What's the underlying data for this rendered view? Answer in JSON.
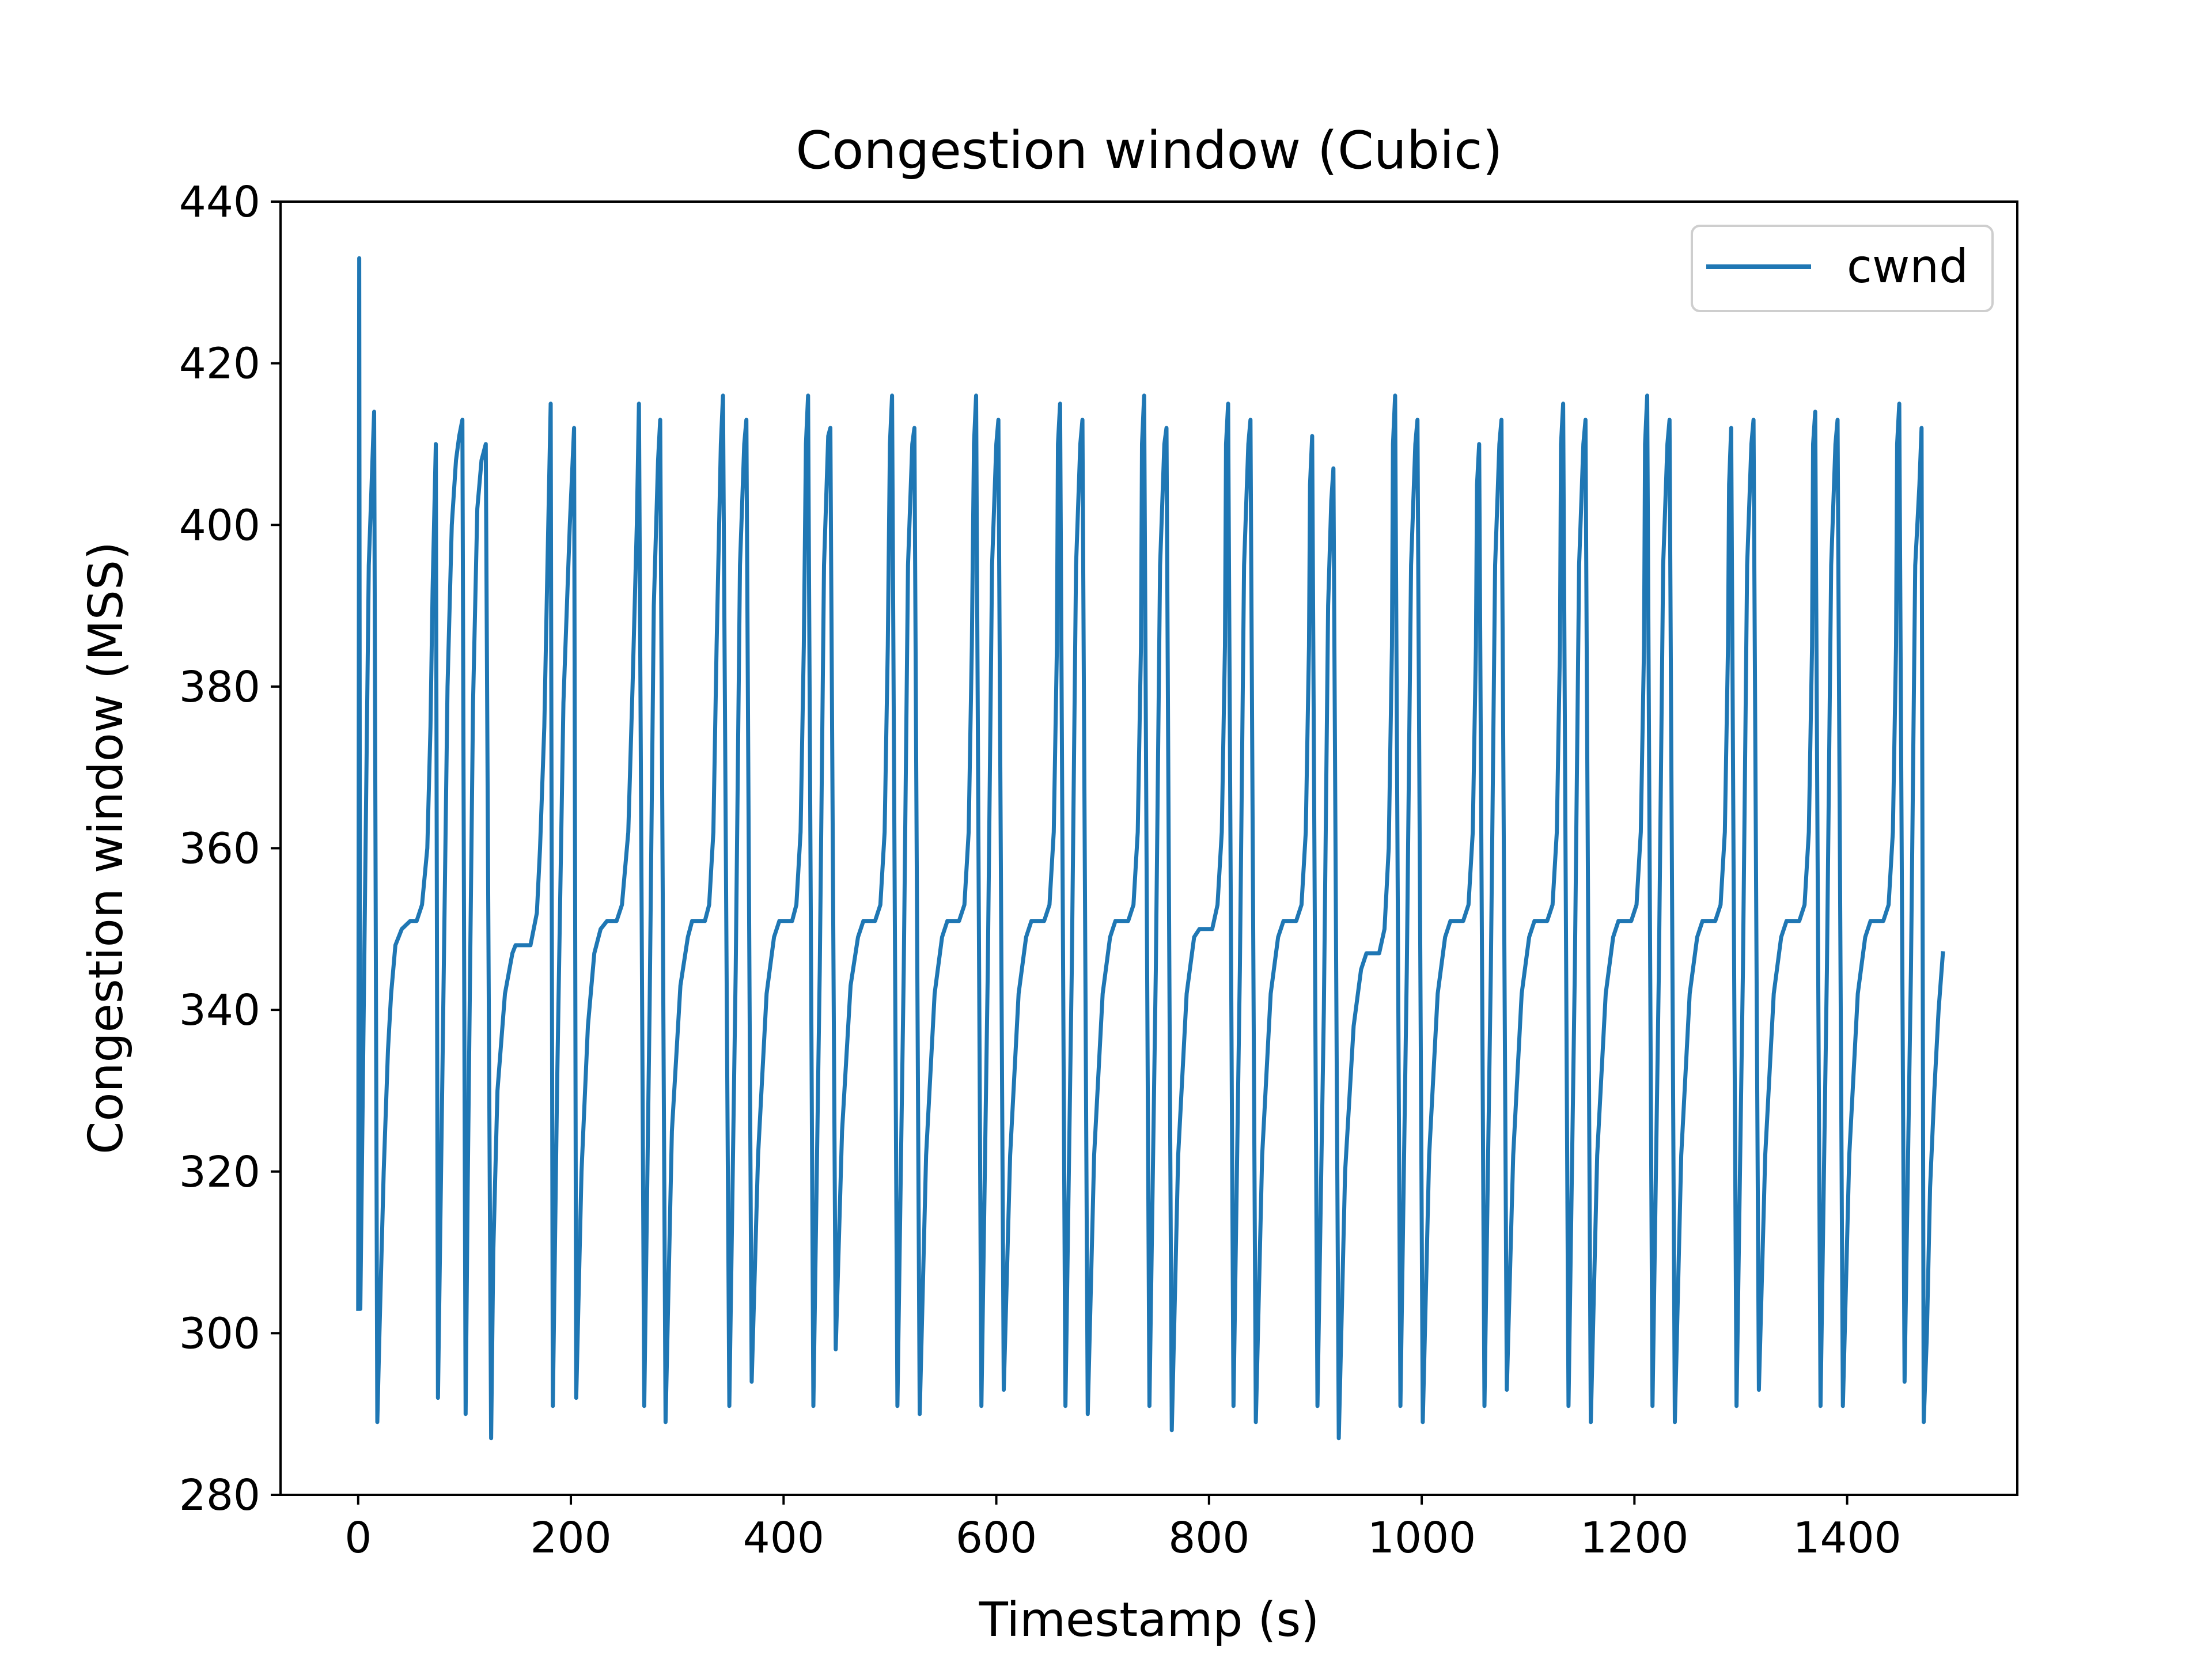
{
  "chart_data": {
    "type": "line",
    "title": "Congestion window (Cubic)",
    "xlabel": "Timestamp (s)",
    "ylabel": "Congestion window (MSS)",
    "xlim": [
      -73,
      1560
    ],
    "ylim": [
      280,
      440
    ],
    "xticks": [
      0,
      200,
      400,
      600,
      800,
      1000,
      1200,
      1400
    ],
    "yticks": [
      280,
      300,
      320,
      340,
      360,
      380,
      400,
      420,
      440
    ],
    "grid": false,
    "legend": "top-right",
    "series": [
      {
        "name": "cwnd",
        "color": "#1f77b4",
        "x": [
          0,
          1,
          2,
          10,
          15,
          18,
          20,
          24,
          28,
          31,
          35,
          41,
          49,
          52,
          55,
          60,
          65,
          68,
          70,
          73,
          75,
          79,
          84,
          88,
          92,
          95,
          98,
          101,
          103,
          108,
          112,
          116,
          120,
          125,
          127,
          131,
          138,
          145,
          148,
          154,
          162,
          168,
          171,
          175,
          178,
          181,
          183,
          187,
          193,
          199,
          203,
          205,
          210,
          216,
          222,
          228,
          234,
          239,
          243,
          248,
          254,
          258,
          262,
          264,
          269,
          274,
          278,
          282,
          284,
          289,
          295,
          303,
          310,
          314,
          320,
          326,
          330,
          334,
          337,
          341,
          343,
          349,
          355,
          359,
          363,
          365,
          370,
          376,
          384,
          391,
          396,
          402,
          408,
          412,
          416,
          419,
          421,
          423,
          428,
          434,
          438,
          442,
          444,
          449,
          455,
          463,
          470,
          475,
          481,
          486,
          491,
          495,
          498,
          500,
          502,
          507,
          513,
          517,
          521,
          523,
          528,
          534,
          542,
          549,
          554,
          560,
          565,
          570,
          574,
          577,
          579,
          581,
          586,
          592,
          596,
          600,
          602,
          607,
          613,
          621,
          628,
          633,
          639,
          645,
          650,
          654,
          657,
          658,
          660,
          665,
          671,
          675,
          679,
          681,
          686,
          692,
          700,
          707,
          712,
          718,
          724,
          729,
          733,
          736,
          737,
          739,
          744,
          750,
          754,
          758,
          760,
          765,
          771,
          779,
          786,
          791,
          797,
          803,
          808,
          812,
          815,
          816,
          818,
          823,
          829,
          833,
          837,
          839,
          844,
          850,
          858,
          865,
          870,
          876,
          882,
          887,
          891,
          894,
          895,
          897,
          902,
          908,
          912,
          915,
          917,
          922,
          928,
          936,
          943,
          948,
          954,
          960,
          965,
          969,
          972,
          973,
          975,
          980,
          986,
          990,
          994,
          996,
          1001,
          1007,
          1015,
          1022,
          1027,
          1033,
          1039,
          1044,
          1048,
          1051,
          1052,
          1054,
          1059,
          1065,
          1069,
          1073,
          1075,
          1080,
          1086,
          1094,
          1101,
          1106,
          1112,
          1118,
          1123,
          1127,
          1130,
          1131,
          1133,
          1138,
          1144,
          1148,
          1152,
          1154,
          1159,
          1165,
          1173,
          1180,
          1185,
          1191,
          1197,
          1202,
          1206,
          1209,
          1210,
          1212,
          1217,
          1223,
          1227,
          1231,
          1233,
          1238,
          1244,
          1252,
          1259,
          1264,
          1270,
          1276,
          1281,
          1285,
          1288,
          1289,
          1291,
          1296,
          1302,
          1306,
          1310,
          1312,
          1317,
          1323,
          1331,
          1338,
          1343,
          1349,
          1355,
          1360,
          1364,
          1367,
          1368,
          1370,
          1375,
          1381,
          1385,
          1389,
          1391,
          1396,
          1402,
          1410,
          1417,
          1422,
          1428,
          1434,
          1439,
          1443,
          1446,
          1447,
          1449,
          1454,
          1460,
          1464,
          1468,
          1470,
          1472,
          1475,
          1478,
          1482,
          1486,
          1490
        ],
        "y": [
          303,
          433,
          303,
          395,
          414,
          289,
          300,
          320,
          335,
          342,
          348,
          350,
          351,
          351,
          351,
          353,
          360,
          375,
          392,
          410,
          292,
          330,
          380,
          400,
          408,
          411,
          413,
          290,
          318,
          378,
          402,
          408,
          410,
          287,
          310,
          330,
          342,
          347,
          348,
          348,
          348,
          352,
          360,
          375,
          395,
          415,
          291,
          330,
          378,
          400,
          412,
          292,
          320,
          338,
          347,
          350,
          351,
          351,
          351,
          353,
          362,
          380,
          400,
          415,
          291,
          340,
          390,
          408,
          413,
          289,
          325,
          343,
          349,
          351,
          351,
          351,
          353,
          362,
          385,
          410,
          416,
          291,
          345,
          395,
          410,
          413,
          294,
          322,
          342,
          349,
          351,
          351,
          351,
          353,
          362,
          385,
          410,
          416,
          291,
          345,
          395,
          411,
          412,
          298,
          325,
          343,
          349,
          351,
          351,
          351,
          353,
          362,
          385,
          410,
          416,
          291,
          345,
          395,
          410,
          412,
          290,
          322,
          342,
          349,
          351,
          351,
          351,
          353,
          362,
          385,
          410,
          416,
          291,
          345,
          395,
          410,
          413,
          293,
          322,
          342,
          349,
          351,
          351,
          351,
          353,
          362,
          385,
          410,
          415,
          291,
          345,
          395,
          410,
          413,
          290,
          322,
          342,
          349,
          351,
          351,
          351,
          353,
          362,
          385,
          410,
          416,
          291,
          345,
          395,
          410,
          412,
          288,
          322,
          342,
          349,
          350,
          350,
          350,
          353,
          362,
          385,
          410,
          415,
          291,
          345,
          395,
          410,
          413,
          289,
          322,
          342,
          349,
          351,
          351,
          351,
          353,
          362,
          385,
          405,
          411,
          291,
          340,
          390,
          403,
          407,
          287,
          320,
          338,
          345,
          347,
          347,
          347,
          350,
          360,
          385,
          410,
          416,
          291,
          345,
          395,
          410,
          413,
          289,
          322,
          342,
          349,
          351,
          351,
          351,
          353,
          362,
          385,
          405,
          410,
          291,
          345,
          395,
          410,
          413,
          293,
          322,
          342,
          349,
          351,
          351,
          351,
          353,
          362,
          385,
          410,
          415,
          291,
          345,
          395,
          410,
          413,
          289,
          322,
          342,
          349,
          351,
          351,
          351,
          353,
          362,
          385,
          410,
          416,
          291,
          345,
          395,
          410,
          413,
          289,
          322,
          342,
          349,
          351,
          351,
          351,
          353,
          362,
          385,
          405,
          412,
          291,
          345,
          395,
          410,
          413,
          293,
          322,
          342,
          349,
          351,
          351,
          351,
          353,
          362,
          385,
          410,
          414,
          291,
          345,
          395,
          410,
          413,
          291,
          322,
          342,
          349,
          351,
          351,
          351,
          353,
          362,
          385,
          410,
          415,
          294,
          345,
          395,
          405,
          412,
          289,
          300,
          318,
          330,
          340,
          347
        ]
      }
    ]
  }
}
